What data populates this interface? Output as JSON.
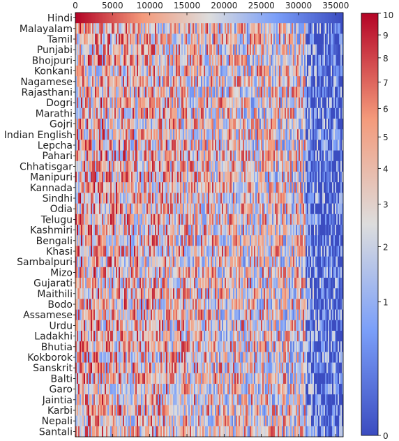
{
  "chart_data": {
    "type": "heatmap",
    "title": "",
    "xlabel": "",
    "ylabel": "",
    "x_ticks": [
      0,
      5000,
      10000,
      15000,
      20000,
      25000,
      30000,
      35000
    ],
    "x_range": [
      0,
      36000
    ],
    "rows": [
      "Hindi",
      "Malayalam",
      "Tamil",
      "Punjabi",
      "Bhojpuri",
      "Konkani",
      "Nagamese",
      "Rajasthani",
      "Dogri",
      "Marathi",
      "Gojri",
      "Indian English",
      "Lepcha",
      "Pahari",
      "Chhatisgar",
      "Manipuri",
      "Kannada",
      "Sindhi",
      "Odia",
      "Telugu",
      "Kashmiri",
      "Bengali",
      "Khasi",
      "Sambalpuri",
      "Mizo",
      "Gujarati",
      "Maithili",
      "Bodo",
      "Assamese",
      "Urdu",
      "Ladakhi",
      "Bhutia",
      "Kokborok",
      "Sanskrit",
      "Balti",
      "Garo",
      "Jaintia",
      "Karbi",
      "Nepali",
      "Santali"
    ],
    "colorbar": {
      "min": 0,
      "max": 10,
      "scale": "sqrt",
      "ticks": [
        "0",
        "1",
        "2",
        "3",
        "4",
        "5",
        "6",
        "7",
        "8",
        "9",
        "10"
      ],
      "colormap": "coolwarm",
      "low_color": "#3b4cc0",
      "mid_color": "#dddddd",
      "high_color": "#b40426"
    },
    "value_pattern": "Hindi row is a smooth gradient from 10 (left) down to 0 (right); other rows show noisy values, predominantly mid-to-high on the left and decaying to low values beyond ~32000"
  }
}
